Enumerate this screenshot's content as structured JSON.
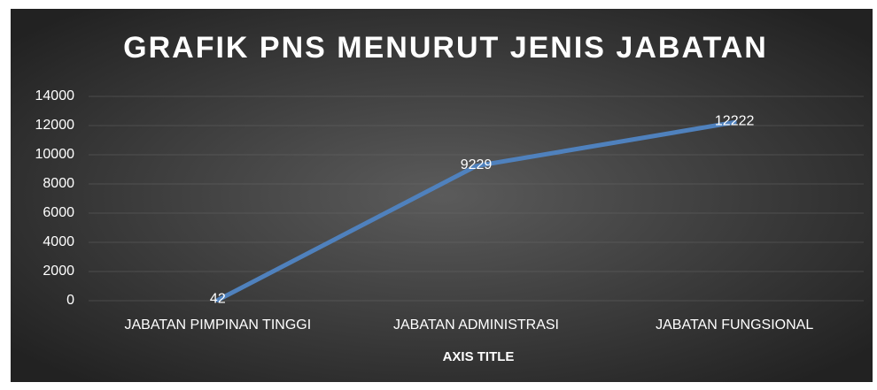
{
  "chart_data": {
    "type": "line",
    "title": "GRAFIK PNS MENURUT JENIS JABATAN",
    "x_label": "AXIS TITLE",
    "categories": [
      "JABATAN PIMPINAN TINGGI",
      "JABATAN ADMINISTRASI",
      "JABATAN FUNGSIONAL"
    ],
    "values": [
      42,
      9229,
      12222
    ],
    "color": "#4f81bd",
    "ylim": [
      0,
      14000
    ],
    "yticks": [
      0,
      2000,
      4000,
      6000,
      8000,
      10000,
      12000,
      14000
    ],
    "grid": true
  }
}
